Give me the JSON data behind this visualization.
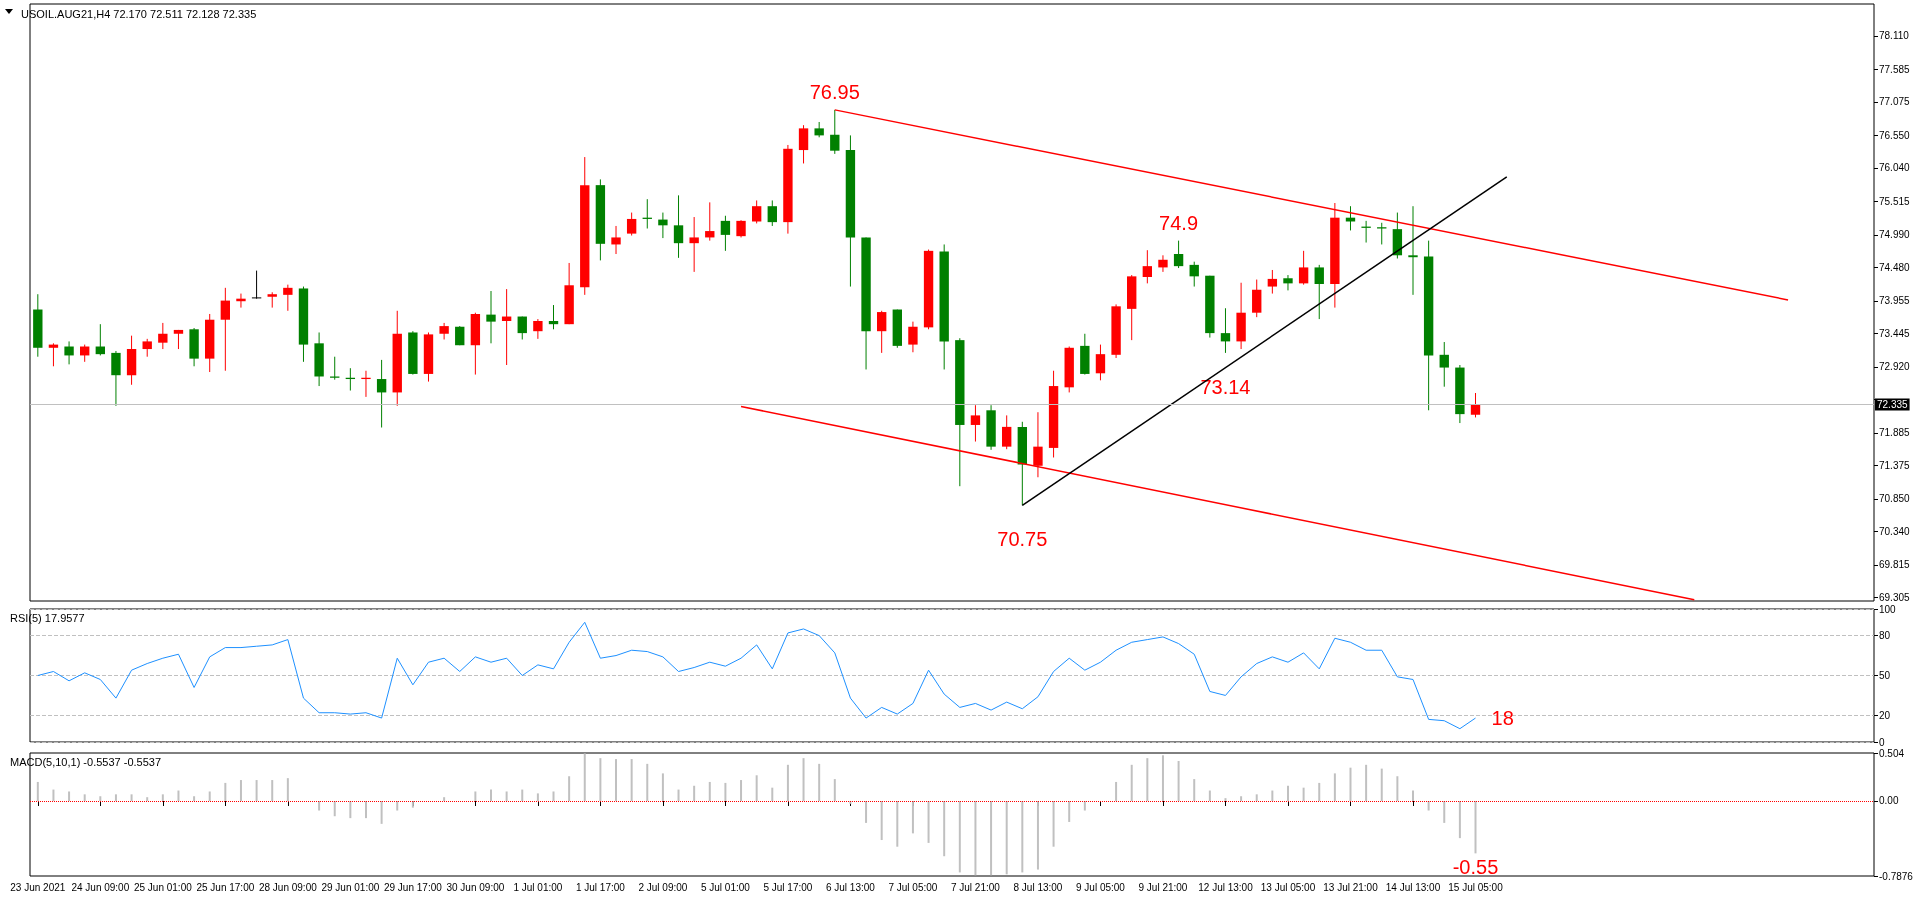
{
  "chart_data": [
    {
      "type": "candlestick",
      "title": "USOIL.AUG21,H4 72.170 72.511 72.128 72.335",
      "categories": [
        null,
        null,
        null,
        null,
        null,
        null,
        null,
        null,
        null,
        null,
        null,
        null,
        null,
        null,
        null,
        null,
        null,
        null,
        null,
        null,
        null,
        null,
        null,
        null,
        null,
        null,
        null,
        null,
        null,
        null,
        null,
        null,
        null,
        null,
        null,
        null,
        null,
        null,
        null,
        null,
        null,
        null,
        null,
        null,
        null,
        null,
        null,
        null,
        null,
        null,
        null,
        null,
        null,
        null,
        null,
        null,
        null,
        null,
        null,
        null,
        null,
        null,
        null,
        null,
        null,
        null,
        null,
        null,
        null,
        null,
        null,
        null,
        null,
        null,
        null,
        null,
        null,
        null,
        null,
        null,
        null,
        null,
        null,
        null,
        null,
        null,
        null,
        null,
        null,
        null,
        null,
        null,
        null,
        null,
        null,
        null,
        null,
        null,
        null,
        null,
        null,
        null,
        null,
        null,
        null,
        null,
        null,
        null,
        null,
        null,
        null,
        null,
        null,
        null,
        null,
        null,
        null,
        null
      ],
      "ohlc": [
        [
          73.82,
          74.06,
          73.08,
          73.22
        ],
        [
          73.22,
          73.29,
          72.93,
          73.27
        ],
        [
          73.24,
          73.32,
          72.96,
          73.1
        ],
        [
          73.1,
          73.27,
          73.0,
          73.24
        ],
        [
          73.24,
          73.59,
          73.1,
          73.12
        ],
        [
          73.14,
          73.17,
          72.31,
          72.79
        ],
        [
          72.79,
          73.41,
          72.64,
          73.2
        ],
        [
          73.2,
          73.36,
          73.08,
          73.32
        ],
        [
          73.3,
          73.61,
          73.2,
          73.44
        ],
        [
          73.44,
          73.5,
          73.2,
          73.5
        ],
        [
          73.51,
          73.53,
          72.93,
          73.05
        ],
        [
          73.05,
          73.75,
          72.84,
          73.66
        ],
        [
          73.66,
          74.16,
          72.86,
          73.96
        ],
        [
          73.95,
          74.07,
          73.85,
          73.99
        ],
        [
          74.01,
          74.43,
          73.99,
          74.01
        ],
        [
          74.02,
          74.09,
          73.85,
          74.06
        ],
        [
          74.05,
          74.21,
          73.8,
          74.16
        ],
        [
          74.15,
          74.18,
          73.0,
          73.27
        ],
        [
          73.29,
          73.46,
          72.62,
          72.77
        ],
        [
          72.77,
          73.08,
          72.72,
          72.75
        ],
        [
          72.75,
          72.9,
          72.55,
          72.73
        ],
        [
          72.73,
          72.86,
          72.45,
          72.75
        ],
        [
          72.73,
          73.03,
          71.97,
          72.52
        ],
        [
          72.52,
          73.8,
          72.31,
          73.44
        ],
        [
          73.46,
          73.48,
          72.8,
          72.81
        ],
        [
          72.81,
          73.46,
          72.69,
          73.43
        ],
        [
          73.44,
          73.61,
          73.35,
          73.56
        ],
        [
          73.55,
          73.56,
          73.26,
          73.26
        ],
        [
          73.26,
          73.77,
          72.8,
          73.75
        ],
        [
          73.74,
          74.11,
          73.29,
          73.63
        ],
        [
          73.64,
          74.14,
          72.95,
          73.71
        ],
        [
          73.71,
          73.71,
          73.35,
          73.45
        ],
        [
          73.48,
          73.67,
          73.36,
          73.64
        ],
        [
          73.64,
          73.89,
          73.51,
          73.59
        ],
        [
          73.59,
          74.55,
          73.59,
          74.2
        ],
        [
          74.17,
          76.21,
          74.05,
          75.77
        ],
        [
          75.77,
          75.86,
          74.59,
          74.85
        ],
        [
          74.84,
          75.13,
          74.69,
          74.95
        ],
        [
          75.01,
          75.34,
          74.98,
          75.24
        ],
        [
          75.26,
          75.55,
          75.09,
          75.24
        ],
        [
          75.23,
          75.34,
          74.94,
          75.14
        ],
        [
          75.14,
          75.61,
          74.63,
          74.86
        ],
        [
          74.86,
          75.27,
          74.41,
          74.95
        ],
        [
          74.95,
          75.5,
          74.9,
          75.05
        ],
        [
          75.21,
          75.29,
          74.74,
          74.99
        ],
        [
          74.97,
          75.22,
          74.95,
          75.21
        ],
        [
          75.2,
          75.53,
          75.17,
          75.44
        ],
        [
          75.44,
          75.53,
          75.13,
          75.19
        ],
        [
          75.19,
          76.4,
          75.01,
          76.34
        ],
        [
          76.32,
          76.71,
          76.11,
          76.66
        ],
        [
          76.66,
          76.76,
          76.52,
          76.55
        ],
        [
          76.56,
          76.95,
          76.26,
          76.31
        ],
        [
          76.32,
          76.55,
          74.18,
          74.95
        ],
        [
          74.95,
          74.95,
          72.88,
          73.48
        ],
        [
          73.48,
          73.8,
          73.14,
          73.78
        ],
        [
          73.82,
          73.82,
          73.22,
          73.25
        ],
        [
          73.27,
          73.63,
          73.15,
          73.55
        ],
        [
          73.54,
          74.76,
          73.51,
          74.74
        ],
        [
          74.73,
          74.84,
          72.88,
          73.32
        ],
        [
          73.34,
          73.37,
          71.05,
          72.01
        ],
        [
          72.01,
          72.32,
          71.75,
          72.16
        ],
        [
          72.24,
          72.32,
          71.62,
          71.67
        ],
        [
          71.67,
          72.16,
          71.63,
          71.98
        ],
        [
          71.98,
          72.06,
          70.75,
          71.39
        ],
        [
          71.37,
          72.21,
          71.19,
          71.67
        ],
        [
          71.65,
          72.86,
          71.5,
          72.62
        ],
        [
          72.6,
          73.24,
          72.52,
          73.22
        ],
        [
          73.25,
          73.44,
          72.8,
          72.81
        ],
        [
          72.82,
          73.27,
          72.71,
          73.12
        ],
        [
          73.11,
          73.9,
          73.06,
          73.87
        ],
        [
          73.83,
          74.36,
          73.34,
          74.34
        ],
        [
          74.33,
          74.75,
          74.23,
          74.5
        ],
        [
          74.48,
          74.67,
          74.41,
          74.6
        ],
        [
          74.69,
          74.9,
          74.47,
          74.5
        ],
        [
          74.52,
          74.57,
          74.18,
          74.34
        ],
        [
          74.35,
          74.35,
          73.38,
          73.45
        ],
        [
          73.45,
          73.84,
          73.14,
          73.32
        ],
        [
          73.32,
          74.24,
          73.2,
          73.77
        ],
        [
          73.77,
          74.29,
          73.7,
          74.13
        ],
        [
          74.18,
          74.44,
          74.07,
          74.3
        ],
        [
          74.31,
          74.36,
          74.12,
          74.23
        ],
        [
          74.23,
          74.74,
          74.21,
          74.48
        ],
        [
          74.48,
          74.52,
          73.67,
          74.22
        ],
        [
          74.22,
          75.49,
          73.85,
          75.26
        ],
        [
          75.26,
          75.44,
          75.06,
          75.2
        ],
        [
          75.12,
          75.21,
          74.87,
          75.1
        ],
        [
          75.11,
          75.18,
          74.84,
          75.09
        ],
        [
          75.08,
          75.34,
          74.62,
          74.67
        ],
        [
          74.67,
          75.44,
          74.05,
          74.64
        ],
        [
          74.65,
          74.9,
          72.24,
          73.1
        ],
        [
          73.11,
          73.31,
          72.61,
          72.91
        ],
        [
          72.91,
          72.95,
          72.04,
          72.18
        ],
        [
          72.17,
          72.511,
          72.128,
          72.335
        ],
        null,
        null,
        null,
        null,
        null,
        null,
        null,
        null,
        null,
        null,
        null,
        null,
        null,
        null,
        null,
        null,
        null,
        null,
        null,
        null,
        null,
        null,
        null,
        null,
        null
      ],
      "colors": [
        "#008000",
        "#ff0000",
        "#008000",
        "#ff0000",
        "#008000",
        "#008000",
        "#ff0000",
        "#ff0000",
        "#ff0000",
        "#ff0000",
        "#008000",
        "#ff0000",
        "#ff0000",
        "#ff0000",
        "#000000",
        "#ff0000",
        "#ff0000",
        "#008000",
        "#008000",
        "#008000",
        "#008000",
        "#ff0000",
        "#008000",
        "#ff0000",
        "#008000",
        "#ff0000",
        "#ff0000",
        "#008000",
        "#ff0000",
        "#008000",
        "#ff0000",
        "#008000",
        "#ff0000",
        "#008000",
        "#ff0000",
        "#ff0000",
        "#008000",
        "#ff0000",
        "#ff0000",
        "#008000",
        "#008000",
        "#008000",
        "#ff0000",
        "#ff0000",
        "#008000",
        "#ff0000",
        "#ff0000",
        "#008000",
        "#ff0000",
        "#ff0000",
        "#008000",
        "#008000",
        "#008000",
        "#008000",
        "#ff0000",
        "#008000",
        "#ff0000",
        "#ff0000",
        "#008000",
        "#008000",
        "#ff0000",
        "#008000",
        "#ff0000",
        "#008000",
        "#ff0000",
        "#ff0000",
        "#ff0000",
        "#008000",
        "#ff0000",
        "#ff0000",
        "#ff0000",
        "#ff0000",
        "#ff0000",
        "#008000",
        "#008000",
        "#008000",
        "#008000",
        "#ff0000",
        "#ff0000",
        "#ff0000",
        "#008000",
        "#ff0000",
        "#008000",
        "#ff0000",
        "#008000",
        "#008000",
        "#008000",
        "#008000",
        "#008000",
        "#008000",
        "#008000",
        "#008000",
        "#ff0000",
        null,
        null,
        null,
        null,
        null,
        null,
        null,
        null,
        null,
        null,
        null,
        null,
        null,
        null,
        null,
        null,
        null,
        null,
        null,
        null,
        null,
        null,
        null,
        null,
        null
      ],
      "value_labels": [
        null,
        null,
        null,
        null,
        null,
        null,
        null,
        null,
        null,
        null,
        null,
        null,
        null,
        null,
        null,
        null,
        null,
        null,
        null,
        null,
        null,
        null,
        null,
        null,
        null,
        null,
        null,
        null,
        null,
        null,
        null,
        null,
        null,
        null,
        null,
        null,
        null,
        null,
        null,
        null,
        null,
        null,
        null,
        null,
        null,
        null,
        null,
        null,
        null,
        null,
        null,
        "76.95",
        null,
        null,
        null,
        null,
        null,
        null,
        null,
        null,
        null,
        null,
        null,
        "70.75",
        null,
        null,
        null,
        null,
        null,
        null,
        null,
        null,
        null,
        "74.9",
        null,
        null,
        "73.14",
        null,
        null,
        null,
        null,
        null,
        null,
        null,
        null,
        null,
        null,
        null,
        null,
        null,
        null,
        null,
        null,
        null,
        null,
        null,
        null,
        null,
        null,
        null,
        null,
        null,
        null,
        null,
        null,
        null,
        null,
        null,
        null,
        null,
        null,
        null,
        null,
        null,
        null,
        null,
        null,
        null
      ],
      "ylim": [
        69.25,
        78.61
      ],
      "yticks": [
        {
          "value": 78.11,
          "label": "78.110"
        },
        {
          "value": 77.585,
          "label": "77.585"
        },
        {
          "value": 77.075,
          "label": "77.075"
        },
        {
          "value": 76.55,
          "label": "76.550"
        },
        {
          "value": 76.04,
          "label": "76.040"
        },
        {
          "value": 75.515,
          "label": "75.515"
        },
        {
          "value": 74.99,
          "label": "74.990"
        },
        {
          "value": 74.48,
          "label": "74.480"
        },
        {
          "value": 73.955,
          "label": "73.955"
        },
        {
          "value": 73.445,
          "label": "73.445"
        },
        {
          "value": 72.92,
          "label": "72.920"
        },
        {
          "value": 72.41,
          "label": null
        },
        {
          "value": 71.885,
          "label": "71.885"
        },
        {
          "value": 71.375,
          "label": "71.375"
        },
        {
          "value": 70.85,
          "label": "70.850"
        },
        {
          "value": 70.34,
          "label": "70.340"
        },
        {
          "value": 69.815,
          "label": "69.815"
        },
        {
          "value": 69.305,
          "label": "69.305"
        }
      ],
      "tick_labels": "y",
      "ref_lines": [
        {
          "axis": "y",
          "value": 72.335,
          "label": "72.335",
          "color": "#c0c0c0"
        }
      ],
      "series": [
        {
          "type": "line",
          "color": "#ff0000",
          "values": [
            null,
            null,
            null,
            null,
            null,
            null,
            null,
            null,
            null,
            null,
            null,
            null,
            null,
            null,
            null,
            null,
            null,
            null,
            null,
            null,
            null,
            null,
            null,
            null,
            null,
            null,
            null,
            null,
            null,
            null,
            null,
            null,
            null,
            null,
            null,
            null,
            null,
            null,
            null,
            null,
            null,
            null,
            null,
            null,
            null,
            null,
            null,
            null,
            null,
            null,
            null,
            76.95,
            null,
            null,
            null,
            null,
            null,
            null,
            null,
            null,
            null,
            null,
            null,
            null,
            null,
            null,
            null,
            null,
            null,
            null,
            null,
            null,
            null,
            null,
            null,
            null,
            null,
            null,
            null,
            null,
            null,
            null,
            null,
            null,
            null,
            null,
            null,
            null,
            null,
            null,
            null,
            null,
            null,
            null,
            null,
            null,
            null,
            null,
            null,
            null,
            null,
            null,
            null,
            null,
            null,
            null,
            null,
            null,
            null,
            null,
            null,
            null,
            73.97,
            null,
            null,
            null,
            null,
            null
          ]
        },
        {
          "type": "line",
          "color": "#ff0000",
          "values": [
            null,
            null,
            null,
            null,
            null,
            null,
            null,
            null,
            null,
            null,
            null,
            null,
            null,
            null,
            null,
            null,
            null,
            null,
            null,
            null,
            null,
            null,
            null,
            null,
            null,
            null,
            null,
            null,
            null,
            null,
            null,
            null,
            null,
            null,
            null,
            null,
            null,
            null,
            null,
            null,
            null,
            null,
            null,
            null,
            null,
            72.3,
            null,
            null,
            null,
            null,
            null,
            null,
            null,
            null,
            null,
            null,
            null,
            null,
            null,
            null,
            null,
            null,
            null,
            null,
            null,
            null,
            null,
            null,
            null,
            null,
            null,
            null,
            null,
            null,
            null,
            null,
            null,
            null,
            null,
            null,
            null,
            null,
            null,
            null,
            null,
            null,
            null,
            null,
            null,
            null,
            null,
            null,
            null,
            null,
            null,
            null,
            null,
            null,
            null,
            null,
            null,
            null,
            null,
            null,
            null,
            null,
            69.27,
            null,
            null,
            null,
            null,
            null,
            null,
            null,
            null,
            null,
            null,
            null
          ]
        },
        {
          "type": "line",
          "color": "#000000",
          "values": [
            null,
            null,
            null,
            null,
            null,
            null,
            null,
            null,
            null,
            null,
            null,
            null,
            null,
            null,
            null,
            null,
            null,
            null,
            null,
            null,
            null,
            null,
            null,
            null,
            null,
            null,
            null,
            null,
            null,
            null,
            null,
            null,
            null,
            null,
            null,
            null,
            null,
            null,
            null,
            null,
            null,
            null,
            null,
            null,
            null,
            null,
            null,
            null,
            null,
            null,
            null,
            null,
            null,
            null,
            null,
            null,
            null,
            null,
            null,
            null,
            null,
            null,
            null,
            70.75,
            null,
            null,
            null,
            null,
            null,
            null,
            null,
            null,
            null,
            null,
            null,
            null,
            null,
            null,
            null,
            null,
            null,
            null,
            null,
            null,
            null,
            null,
            null,
            null,
            null,
            null,
            null,
            null,
            null,
            null,
            75.9,
            null,
            null,
            null,
            null,
            null,
            null,
            null,
            null,
            null,
            null,
            null,
            null,
            null,
            null,
            null,
            null,
            null,
            null,
            null,
            null,
            null,
            null,
            null
          ]
        }
      ]
    },
    {
      "type": "line",
      "title": "RSI(5) 17.9577",
      "categories": [
        null,
        null,
        null,
        null,
        null,
        null,
        null,
        null,
        null,
        null,
        null,
        null,
        null,
        null,
        null,
        null,
        null,
        null,
        null,
        null,
        null,
        null,
        null,
        null,
        null,
        null,
        null,
        null,
        null,
        null,
        null,
        null,
        null,
        null,
        null,
        null,
        null,
        null,
        null,
        null,
        null,
        null,
        null,
        null,
        null,
        null,
        null,
        null,
        null,
        null,
        null,
        null,
        null,
        null,
        null,
        null,
        null,
        null,
        null,
        null,
        null,
        null,
        null,
        null,
        null,
        null,
        null,
        null,
        null,
        null,
        null,
        null,
        null,
        null,
        null,
        null,
        null,
        null,
        null,
        null,
        null,
        null,
        null,
        null,
        null,
        null,
        null,
        null,
        null,
        null,
        null,
        null,
        null,
        null,
        null,
        null,
        null,
        null,
        null,
        null,
        null,
        null,
        null,
        null,
        null,
        null,
        null,
        null,
        null,
        null,
        null,
        null,
        null,
        null,
        null,
        null,
        null,
        null
      ],
      "values": [
        50,
        53,
        46,
        52,
        47,
        33,
        54,
        59,
        63,
        66,
        41,
        64,
        71,
        71,
        72,
        73,
        77,
        33,
        22,
        22,
        21,
        22,
        18,
        63,
        43,
        60,
        63,
        53,
        64,
        60,
        63,
        50,
        58,
        55,
        75,
        90,
        63,
        65,
        69,
        68,
        64,
        53,
        56,
        60,
        57,
        63,
        73,
        55,
        82,
        85,
        80,
        67,
        33,
        18,
        26,
        21,
        29,
        54,
        36,
        26,
        29,
        24,
        30,
        25,
        34,
        53,
        63,
        54,
        60,
        69,
        75,
        77,
        79,
        74,
        66,
        38,
        35,
        49,
        59,
        64,
        60,
        67,
        55,
        78,
        75,
        69,
        69,
        49,
        47,
        17,
        16,
        10,
        18,
        null,
        null,
        null,
        null,
        null,
        null,
        null,
        null,
        null,
        null,
        null,
        null,
        null,
        null,
        null,
        null,
        null,
        null,
        null,
        null,
        null,
        null,
        null,
        null,
        null
      ],
      "value_labels": [
        null,
        null,
        null,
        null,
        null,
        null,
        null,
        null,
        null,
        null,
        null,
        null,
        null,
        null,
        null,
        null,
        null,
        null,
        null,
        null,
        null,
        null,
        null,
        null,
        null,
        null,
        null,
        null,
        null,
        null,
        null,
        null,
        null,
        null,
        null,
        null,
        null,
        null,
        null,
        null,
        null,
        null,
        null,
        null,
        null,
        null,
        null,
        null,
        null,
        null,
        null,
        null,
        null,
        null,
        null,
        null,
        null,
        null,
        null,
        null,
        null,
        null,
        null,
        null,
        null,
        null,
        null,
        null,
        null,
        null,
        null,
        null,
        null,
        null,
        null,
        null,
        null,
        null,
        null,
        null,
        null,
        null,
        null,
        null,
        null,
        null,
        null,
        null,
        null,
        null,
        null,
        null,
        "18",
        null,
        null,
        null,
        null,
        null,
        null,
        null,
        null,
        null,
        null,
        null,
        null,
        null,
        null,
        null,
        null,
        null,
        null,
        null,
        null,
        null,
        null,
        null,
        null,
        null
      ],
      "color": "#1e90ff",
      "ylim": [
        0,
        100
      ],
      "yticks": [
        0,
        20,
        50,
        80,
        100
      ],
      "grid": "y",
      "tick_labels": "y"
    },
    {
      "type": "bar",
      "title": "MACD(5,10,1) -0.5537 -0.5537",
      "categories": [
        "23 Jun 2021",
        null,
        null,
        null,
        "24 Jun 09:00",
        null,
        null,
        null,
        "25 Jun 01:00",
        null,
        null,
        null,
        "25 Jun 17:00",
        null,
        null,
        null,
        "28 Jun 09:00",
        null,
        null,
        null,
        "29 Jun 01:00",
        null,
        null,
        null,
        "29 Jun 17:00",
        null,
        null,
        null,
        "30 Jun 09:00",
        null,
        null,
        null,
        "1 Jul 01:00",
        null,
        null,
        null,
        "1 Jul 17:00",
        null,
        null,
        null,
        "2 Jul 09:00",
        null,
        null,
        null,
        "5 Jul 01:00",
        null,
        null,
        null,
        "5 Jul 17:00",
        null,
        null,
        null,
        "6 Jul 13:00",
        null,
        null,
        null,
        "7 Jul 05:00",
        null,
        null,
        null,
        "7 Jul 21:00",
        null,
        null,
        null,
        "8 Jul 13:00",
        null,
        null,
        null,
        "9 Jul 05:00",
        null,
        null,
        null,
        "9 Jul 21:00",
        null,
        null,
        null,
        "12 Jul 13:00",
        null,
        null,
        null,
        "13 Jul 05:00",
        null,
        null,
        null,
        "13 Jul 21:00",
        null,
        null,
        null,
        "14 Jul 13:00",
        null,
        null,
        null,
        "15 Jul 05:00",
        null,
        null,
        null,
        null,
        null,
        null,
        null,
        null,
        null,
        null,
        null,
        null,
        null,
        null,
        null,
        null,
        null,
        null,
        null,
        null,
        null,
        null,
        null,
        null,
        null
      ],
      "values": [
        0.2,
        0.12,
        0.1,
        0.07,
        0.05,
        0.07,
        0.07,
        0.04,
        0.07,
        0.11,
        0.05,
        0.1,
        0.19,
        0.22,
        0.22,
        0.22,
        0.24,
        null,
        -0.1,
        -0.16,
        -0.18,
        -0.18,
        -0.24,
        -0.1,
        -0.07,
        null,
        0.04,
        null,
        0.1,
        0.12,
        0.1,
        0.12,
        0.08,
        0.1,
        0.26,
        0.5,
        0.45,
        0.44,
        0.44,
        0.39,
        0.29,
        0.12,
        0.16,
        0.2,
        0.19,
        0.22,
        0.27,
        0.14,
        0.38,
        0.45,
        0.39,
        0.23,
        -0.03,
        -0.23,
        -0.41,
        -0.48,
        -0.34,
        -0.44,
        -0.58,
        -0.75,
        -0.78,
        -0.78,
        -0.77,
        -0.75,
        -0.72,
        -0.48,
        -0.22,
        -0.1,
        0,
        0.2,
        0.38,
        0.45,
        0.48,
        0.42,
        0.23,
        0.11,
        0.03,
        0.05,
        0.07,
        0.11,
        0.16,
        0.14,
        0.19,
        0.29,
        0.35,
        0.38,
        0.34,
        0.26,
        0.11,
        -0.1,
        -0.23,
        -0.39,
        -0.55,
        null,
        null,
        null,
        null,
        null,
        null,
        null,
        null,
        null,
        null,
        null,
        null,
        null,
        null,
        null,
        null,
        null,
        null,
        null,
        null,
        null,
        null,
        null,
        null,
        null
      ],
      "value_labels": [
        null,
        null,
        null,
        null,
        null,
        null,
        null,
        null,
        null,
        null,
        null,
        null,
        null,
        null,
        null,
        null,
        null,
        null,
        null,
        null,
        null,
        null,
        null,
        null,
        null,
        null,
        null,
        null,
        null,
        null,
        null,
        null,
        null,
        null,
        null,
        null,
        null,
        null,
        null,
        null,
        null,
        null,
        null,
        null,
        null,
        null,
        null,
        null,
        null,
        null,
        null,
        null,
        null,
        null,
        null,
        null,
        null,
        null,
        null,
        null,
        null,
        null,
        null,
        null,
        null,
        null,
        null,
        null,
        null,
        null,
        null,
        null,
        null,
        null,
        null,
        null,
        null,
        null,
        null,
        null,
        null,
        null,
        null,
        null,
        null,
        null,
        null,
        null,
        null,
        null,
        null,
        null,
        "-0.55",
        null,
        null,
        null,
        null,
        null,
        null,
        null,
        null,
        null,
        null,
        null,
        null,
        null,
        null,
        null,
        null,
        null,
        null,
        null,
        null,
        null,
        null,
        null,
        null,
        null
      ],
      "color": "#c0c0c0",
      "ylim": [
        -0.7876,
        0.504
      ],
      "yticks": [
        {
          "value": 0.504,
          "label": "0.504"
        },
        {
          "value": 0,
          "label": "0.00"
        },
        {
          "value": -0.7876,
          "label": "-0.7876"
        }
      ],
      "ref_lines": [
        {
          "axis": "y",
          "value": 0,
          "color": "#ff0000",
          "line_style": "dotted"
        }
      ]
    }
  ]
}
